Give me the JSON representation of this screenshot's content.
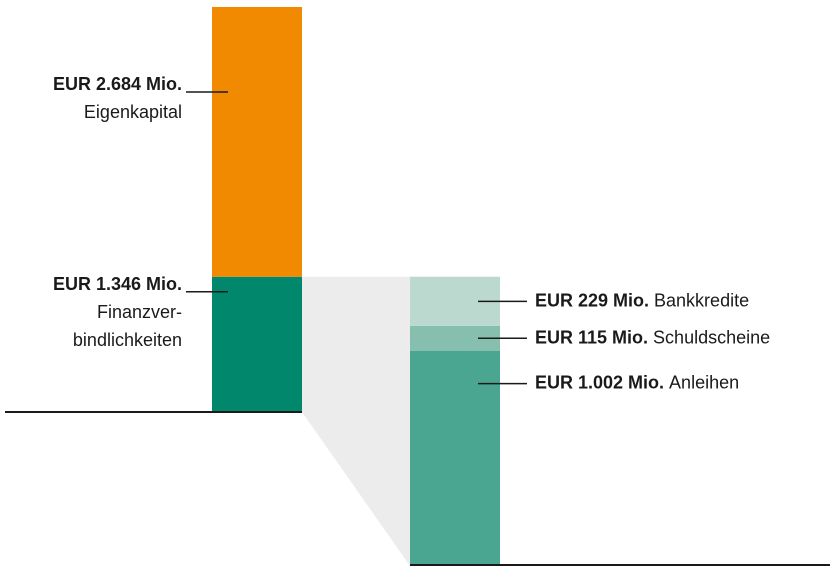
{
  "chart_data": [
    {
      "type": "bar",
      "series": [
        {
          "name": "Finanzver­bindlichkeiten",
          "color": "#00876c",
          "values": [
            1346
          ],
          "value_labels": [
            "EUR 1.346 Mio."
          ]
        },
        {
          "name": "Eigenkapital",
          "color": "#f18a00",
          "values": [
            2684
          ],
          "value_labels": [
            "EUR 2.684 Mio."
          ]
        }
      ]
    },
    {
      "type": "bar",
      "series": [
        {
          "name": "Anleihen",
          "color": "#4aa690",
          "values": [
            1002
          ],
          "value_labels": [
            "EUR 1.002 Mio."
          ]
        },
        {
          "name": "Schuldscheine",
          "color": "#86bfae",
          "values": [
            115
          ],
          "value_labels": [
            "EUR 115 Mio."
          ]
        },
        {
          "name": "Bankkredite",
          "color": "#bcd9d0",
          "values": [
            229
          ],
          "value_labels": [
            "EUR 229 Mio."
          ]
        }
      ]
    }
  ]
}
